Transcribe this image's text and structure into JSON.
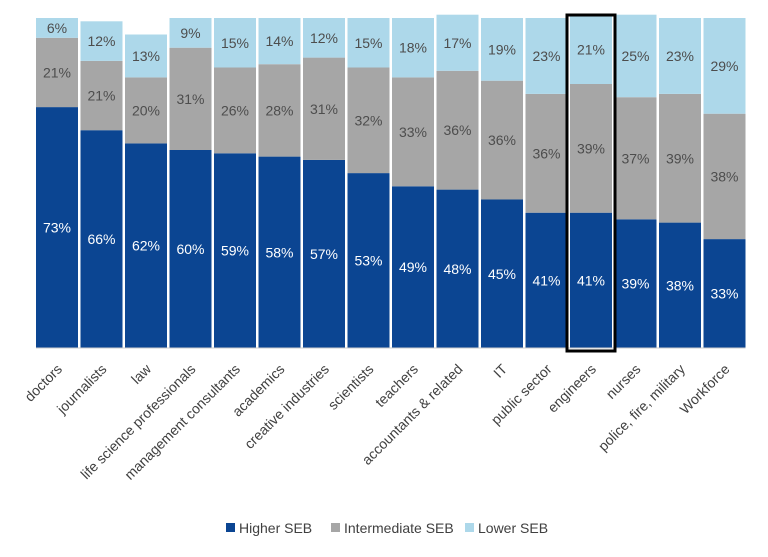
{
  "chart_data": {
    "type": "bar",
    "stacked": true,
    "normalized_percent": true,
    "categories": [
      "doctors",
      "journalists",
      "law",
      "life science professionals",
      "management consultants",
      "academics",
      "creative industries",
      "scientists",
      "teachers",
      "accountants & related",
      "IT",
      "public sector",
      "engineers",
      "nurses",
      "police, fire, military",
      "Workforce"
    ],
    "series": [
      {
        "name": "Higher SEB",
        "color": "#0b4592",
        "values": [
          73,
          66,
          62,
          60,
          59,
          58,
          57,
          53,
          49,
          48,
          45,
          41,
          41,
          39,
          38,
          33
        ]
      },
      {
        "name": "Intermediate SEB",
        "color": "#a6a6a6",
        "values": [
          21,
          21,
          20,
          31,
          26,
          28,
          31,
          32,
          33,
          36,
          36,
          36,
          39,
          37,
          39,
          38
        ]
      },
      {
        "name": "Lower SEB",
        "color": "#add8ea",
        "values": [
          6,
          12,
          13,
          9,
          15,
          14,
          12,
          15,
          18,
          17,
          19,
          23,
          21,
          25,
          23,
          29
        ]
      }
    ],
    "value_labels": [
      [
        "73%",
        "66%",
        "62%",
        "60%",
        "59%",
        "58%",
        "57%",
        "53%",
        "49%",
        "48%",
        "45%",
        "41%",
        "41%",
        "39%",
        "38%",
        "33%"
      ],
      [
        "21%",
        "21%",
        "20%",
        "31%",
        "26%",
        "28%",
        "31%",
        "32%",
        "33%",
        "36%",
        "36%",
        "36%",
        "39%",
        "37%",
        "39%",
        "38%"
      ],
      [
        "6%",
        "12%",
        "13%",
        "9%",
        "15%",
        "14%",
        "12%",
        "15%",
        "18%",
        "17%",
        "19%",
        "23%",
        "21%",
        "25%",
        "23%",
        "29%"
      ]
    ],
    "ylim": [
      0,
      100
    ],
    "highlighted_category": "engineers",
    "legend_position": "bottom",
    "grid": false,
    "label_color": "#ffffff",
    "label_color_light_segments": "#4d4d4d",
    "axis_color": "#cccccc"
  }
}
